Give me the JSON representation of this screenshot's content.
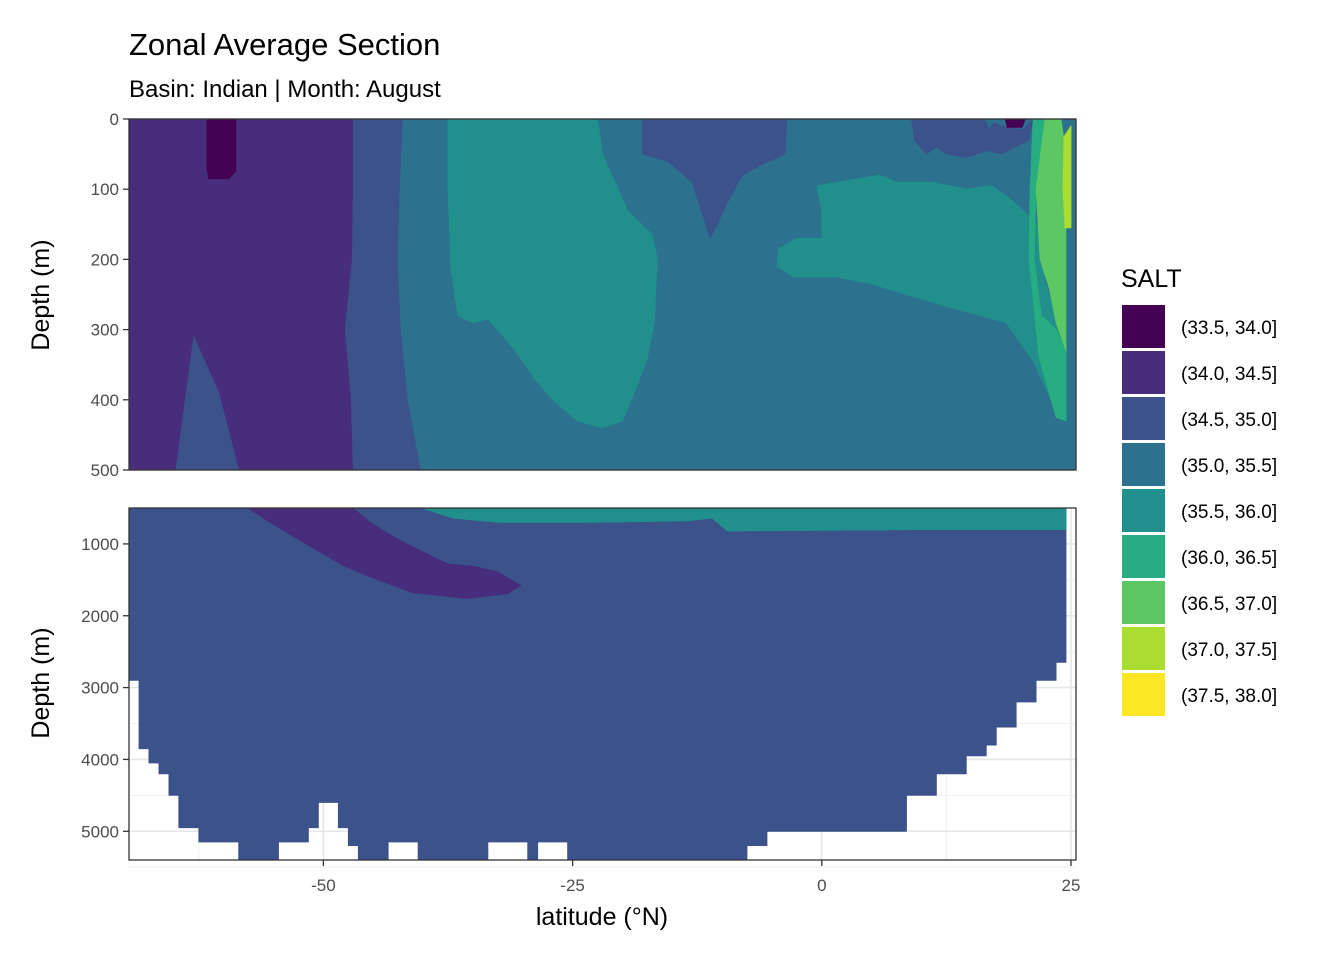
{
  "chart_data": {
    "type": "contour",
    "title": "Zonal Average Section",
    "subtitle": "Basin: Indian | Month: August",
    "xlabel": "latitude (°N)",
    "ylabel": "Depth (m)",
    "xlim": [
      -69.5,
      25.5
    ],
    "x_ticks": [
      {
        "value": -50,
        "label": "-50"
      },
      {
        "value": -25,
        "label": "-25"
      },
      {
        "value": 0,
        "label": "0"
      },
      {
        "value": 25,
        "label": "25"
      }
    ],
    "panels": [
      {
        "name": "upper",
        "ylim": [
          0,
          500
        ],
        "y_reversed": true,
        "y_ticks": [
          {
            "value": 0,
            "label": "0"
          },
          {
            "value": 100,
            "label": "100"
          },
          {
            "value": 200,
            "label": "200"
          },
          {
            "value": 300,
            "label": "300"
          },
          {
            "value": 400,
            "label": "400"
          },
          {
            "value": 500,
            "label": "500"
          }
        ]
      },
      {
        "name": "lower",
        "ylim": [
          500,
          5400
        ],
        "y_reversed": true,
        "y_ticks": [
          {
            "value": 1000,
            "label": "1000"
          },
          {
            "value": 2000,
            "label": "2000"
          },
          {
            "value": 3000,
            "label": "3000"
          },
          {
            "value": 4000,
            "label": "4000"
          },
          {
            "value": 5000,
            "label": "5000"
          }
        ]
      }
    ],
    "legend": {
      "title": "SALT",
      "position": "right",
      "entries": [
        {
          "label": "(33.5, 34.0]",
          "color": "#440154"
        },
        {
          "label": "(34.0, 34.5]",
          "color": "#472D7B"
        },
        {
          "label": "(34.5, 35.0]",
          "color": "#3B528B"
        },
        {
          "label": "(35.0, 35.5]",
          "color": "#2C728E"
        },
        {
          "label": "(35.5, 36.0]",
          "color": "#21908C"
        },
        {
          "label": "(36.0, 36.5]",
          "color": "#27AD81"
        },
        {
          "label": "(36.5, 37.0]",
          "color": "#5DC863"
        },
        {
          "label": "(37.0, 37.5]",
          "color": "#AADC32"
        },
        {
          "label": "(37.5, 38.0]",
          "color": "#FDE725"
        }
      ]
    },
    "regions": [
      {
        "panel": "upper",
        "bin": 1,
        "points": [
          [
            -69.5,
            0
          ],
          [
            -47,
            0
          ],
          [
            -47,
            500
          ],
          [
            -69.5,
            500
          ]
        ]
      },
      {
        "panel": "upper",
        "bin": 2,
        "points": [
          [
            -63,
            310
          ],
          [
            -60.5,
            390
          ],
          [
            -58.5,
            500
          ],
          [
            -64.8,
            500
          ]
        ]
      },
      {
        "panel": "upper",
        "bin": 0,
        "points": [
          [
            -61.7,
            0
          ],
          [
            -58.8,
            0
          ],
          [
            -58.8,
            75
          ],
          [
            -59.5,
            85
          ],
          [
            -61.5,
            85
          ],
          [
            -61.7,
            70
          ]
        ]
      },
      {
        "panel": "upper",
        "bin": 2,
        "points": [
          [
            -47,
            0
          ],
          [
            -42,
            0
          ],
          [
            -42.3,
            100
          ],
          [
            -42.5,
            200
          ],
          [
            -42.2,
            300
          ],
          [
            -41.5,
            400
          ],
          [
            -40.2,
            500
          ],
          [
            -47,
            500
          ],
          [
            -47.2,
            400
          ],
          [
            -47.8,
            300
          ],
          [
            -47.1,
            200
          ],
          [
            -47,
            100
          ]
        ]
      },
      {
        "panel": "upper",
        "bin": 3,
        "points": [
          [
            -42,
            0
          ],
          [
            25.5,
            0
          ],
          [
            25.5,
            500
          ],
          [
            -40.2,
            500
          ],
          [
            -41.5,
            400
          ],
          [
            -42.2,
            300
          ],
          [
            -42.5,
            200
          ],
          [
            -42.3,
            100
          ]
        ]
      },
      {
        "panel": "upper",
        "bin": 4,
        "points": [
          [
            -37.5,
            0
          ],
          [
            -22.5,
            0
          ],
          [
            -22,
            50
          ],
          [
            -19.5,
            130
          ],
          [
            -17,
            165
          ],
          [
            -16.5,
            200
          ],
          [
            -16.8,
            290
          ],
          [
            -17.5,
            340
          ],
          [
            -18.8,
            390
          ],
          [
            -20,
            430
          ],
          [
            -22,
            440
          ],
          [
            -24.5,
            430
          ],
          [
            -27,
            400
          ],
          [
            -28.8,
            370
          ],
          [
            -31,
            325
          ],
          [
            -33.5,
            285
          ],
          [
            -35,
            290
          ],
          [
            -36.5,
            280
          ],
          [
            -37.2,
            215
          ],
          [
            -37.5,
            100
          ]
        ]
      },
      {
        "panel": "upper",
        "bin": 2,
        "points": [
          [
            -18,
            0
          ],
          [
            -11,
            0
          ],
          [
            -11.5,
            50
          ],
          [
            -11.8,
            50
          ],
          [
            -12,
            0
          ],
          [
            -3.5,
            0
          ],
          [
            -3.7,
            50
          ],
          [
            -6,
            65
          ],
          [
            -8,
            80
          ],
          [
            -9.5,
            120
          ],
          [
            -11.2,
            170
          ],
          [
            -13,
            90
          ],
          [
            -15.5,
            60
          ],
          [
            -18,
            50
          ]
        ]
      },
      {
        "panel": "upper",
        "bin": 2,
        "points": [
          [
            9,
            0
          ],
          [
            16,
            0
          ],
          [
            16.5,
            5
          ],
          [
            16.8,
            15
          ],
          [
            17.3,
            5
          ],
          [
            18,
            10
          ],
          [
            20.2,
            15
          ],
          [
            21.2,
            0
          ],
          [
            20.8,
            30
          ],
          [
            18,
            50
          ],
          [
            16.5,
            45
          ],
          [
            14.5,
            55
          ],
          [
            12.5,
            50
          ],
          [
            11.5,
            40
          ],
          [
            10.5,
            50
          ],
          [
            9.3,
            30
          ]
        ]
      },
      {
        "panel": "upper",
        "bin": 0,
        "points": [
          [
            18.4,
            0
          ],
          [
            20.4,
            0
          ],
          [
            20.1,
            12
          ],
          [
            18.6,
            12
          ]
        ]
      },
      {
        "panel": "upper",
        "bin": 4,
        "points": [
          [
            -0.5,
            95
          ],
          [
            5.8,
            80
          ],
          [
            7.5,
            90
          ],
          [
            11,
            90
          ],
          [
            14.5,
            100
          ],
          [
            17,
            95
          ],
          [
            19,
            115
          ],
          [
            22,
            155
          ],
          [
            22.6,
            200
          ],
          [
            22.4,
            230
          ],
          [
            23,
            260
          ],
          [
            23.5,
            290
          ],
          [
            24.5,
            330
          ],
          [
            24.5,
            430
          ],
          [
            23.5,
            425
          ],
          [
            23,
            400
          ],
          [
            21.2,
            345
          ],
          [
            18.5,
            290
          ],
          [
            12,
            265
          ],
          [
            8.5,
            250
          ],
          [
            5,
            235
          ],
          [
            1.5,
            225
          ],
          [
            -2.8,
            225
          ],
          [
            -4.5,
            210
          ],
          [
            -4.3,
            185
          ],
          [
            -2.5,
            170
          ],
          [
            0,
            170
          ],
          [
            0,
            130
          ]
        ]
      },
      {
        "panel": "upper",
        "bin": 5,
        "points": [
          [
            21.2,
            0
          ],
          [
            22.4,
            0
          ],
          [
            21.5,
            100
          ],
          [
            21.3,
            200
          ],
          [
            22,
            280
          ],
          [
            23.5,
            300
          ],
          [
            24.5,
            330
          ],
          [
            24.5,
            430
          ],
          [
            23.5,
            425
          ],
          [
            23,
            400
          ],
          [
            21.8,
            340
          ],
          [
            20.8,
            200
          ],
          [
            20.9,
            100
          ]
        ]
      },
      {
        "panel": "upper",
        "bin": 6,
        "points": [
          [
            22.4,
            0
          ],
          [
            24,
            0
          ],
          [
            24.5,
            50
          ],
          [
            24.5,
            330
          ],
          [
            23.5,
            290
          ],
          [
            22.8,
            240
          ],
          [
            21.9,
            200
          ],
          [
            21.5,
            100
          ]
        ]
      },
      {
        "panel": "upper",
        "bin": 7,
        "points": [
          [
            24.3,
            25
          ],
          [
            25,
            10
          ],
          [
            25,
            155
          ],
          [
            24.4,
            155
          ],
          [
            24.2,
            100
          ]
        ]
      },
      {
        "panel": "lower",
        "bin": 2,
        "points": [
          [
            -69.5,
            505
          ],
          [
            24.5,
            505
          ],
          [
            24.5,
            2650
          ],
          [
            23.5,
            2650
          ],
          [
            23.5,
            2900
          ],
          [
            21.5,
            2900
          ],
          [
            21.5,
            3200
          ],
          [
            19.5,
            3200
          ],
          [
            19.5,
            3550
          ],
          [
            17.5,
            3550
          ],
          [
            17.5,
            3800
          ],
          [
            16.5,
            3800
          ],
          [
            16.5,
            3950
          ],
          [
            14.5,
            3950
          ],
          [
            14.5,
            4200
          ],
          [
            11.5,
            4200
          ],
          [
            11.5,
            4500
          ],
          [
            8.5,
            4500
          ],
          [
            8.5,
            5000
          ],
          [
            -5.5,
            5000
          ],
          [
            -5.5,
            5200
          ],
          [
            -7.5,
            5200
          ],
          [
            -7.5,
            5400
          ],
          [
            -25.5,
            5400
          ],
          [
            -25.5,
            5150
          ],
          [
            -28.5,
            5150
          ],
          [
            -28.5,
            5400
          ],
          [
            -29.5,
            5400
          ],
          [
            -29.5,
            5150
          ],
          [
            -33.5,
            5150
          ],
          [
            -33.5,
            5400
          ],
          [
            -40.5,
            5400
          ],
          [
            -40.5,
            5150
          ],
          [
            -43.5,
            5150
          ],
          [
            -43.5,
            5400
          ],
          [
            -46.5,
            5400
          ],
          [
            -46.5,
            5200
          ],
          [
            -47.5,
            5200
          ],
          [
            -47.5,
            4950
          ],
          [
            -48.5,
            4950
          ],
          [
            -48.5,
            4600
          ],
          [
            -50.5,
            4600
          ],
          [
            -50.5,
            4950
          ],
          [
            -51.5,
            4950
          ],
          [
            -51.5,
            5150
          ],
          [
            -54.5,
            5150
          ],
          [
            -54.5,
            5400
          ],
          [
            -58.5,
            5400
          ],
          [
            -58.5,
            5150
          ],
          [
            -62.5,
            5150
          ],
          [
            -62.5,
            4950
          ],
          [
            -64.5,
            4950
          ],
          [
            -64.5,
            4500
          ],
          [
            -65.5,
            4500
          ],
          [
            -65.5,
            4200
          ],
          [
            -66.5,
            4200
          ],
          [
            -66.5,
            4050
          ],
          [
            -67.5,
            4050
          ],
          [
            -67.5,
            3850
          ],
          [
            -68.5,
            3850
          ],
          [
            -68.5,
            2900
          ],
          [
            -69.5,
            2900
          ]
        ]
      },
      {
        "panel": "lower",
        "bin": 1,
        "points": [
          [
            -57.5,
            505
          ],
          [
            -47,
            505
          ],
          [
            -45.5,
            680
          ],
          [
            -43.5,
            860
          ],
          [
            -41.5,
            1010
          ],
          [
            -39,
            1180
          ],
          [
            -37.5,
            1280
          ],
          [
            -35,
            1310
          ],
          [
            -32.5,
            1390
          ],
          [
            -30.2,
            1580
          ],
          [
            -31.5,
            1690
          ],
          [
            -35.5,
            1760
          ],
          [
            -41,
            1680
          ],
          [
            -45.5,
            1450
          ],
          [
            -48,
            1300
          ],
          [
            -51,
            1060
          ],
          [
            -55,
            730
          ]
        ]
      },
      {
        "panel": "lower",
        "bin": 4,
        "points": [
          [
            -40,
            505
          ],
          [
            24.5,
            505
          ],
          [
            24.5,
            800
          ],
          [
            10,
            800
          ],
          [
            -9.5,
            820
          ],
          [
            -11,
            640
          ],
          [
            -13.5,
            680
          ],
          [
            -23.5,
            700
          ],
          [
            -32.5,
            700
          ],
          [
            -37,
            640
          ]
        ]
      }
    ]
  }
}
